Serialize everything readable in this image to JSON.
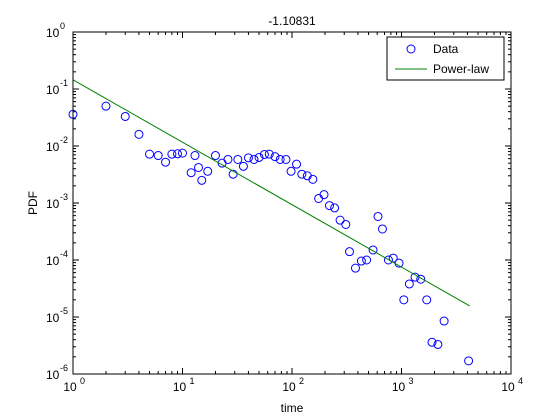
{
  "chart_data": {
    "type": "scatter",
    "title": "-1.10831",
    "xlabel": "time",
    "ylabel": "PDF",
    "xscale": "log",
    "yscale": "log",
    "xlim": [
      1,
      10000
    ],
    "ylim": [
      1e-06,
      1
    ],
    "grid": false,
    "legend_placement": "top-right",
    "x_ticks": [
      {
        "value": 1,
        "mantissa": "10",
        "exponent": "0"
      },
      {
        "value": 10,
        "mantissa": "10",
        "exponent": "1"
      },
      {
        "value": 100,
        "mantissa": "10",
        "exponent": "2"
      },
      {
        "value": 1000,
        "mantissa": "10",
        "exponent": "3"
      },
      {
        "value": 10000,
        "mantissa": "10",
        "exponent": "4"
      }
    ],
    "y_ticks": [
      {
        "value": 1,
        "mantissa": "10",
        "exponent": "0"
      },
      {
        "value": 0.1,
        "mantissa": "10",
        "exponent": "-1"
      },
      {
        "value": 0.01,
        "mantissa": "10",
        "exponent": "-2"
      },
      {
        "value": 0.001,
        "mantissa": "10",
        "exponent": "-3"
      },
      {
        "value": 0.0001,
        "mantissa": "10",
        "exponent": "-4"
      },
      {
        "value": 1e-05,
        "mantissa": "10",
        "exponent": "-5"
      },
      {
        "value": 1e-06,
        "mantissa": "10",
        "exponent": "-6"
      }
    ],
    "series": [
      {
        "name": "Data",
        "kind": "markers",
        "marker": "circle",
        "color": "#0000ff",
        "points": [
          [
            1,
            0.036
          ],
          [
            2,
            0.05
          ],
          [
            3,
            0.033
          ],
          [
            4,
            0.016
          ],
          [
            5,
            0.0072
          ],
          [
            6,
            0.0068
          ],
          [
            7,
            0.0052
          ],
          [
            8,
            0.0072
          ],
          [
            9,
            0.0073
          ],
          [
            10,
            0.0075
          ],
          [
            12,
            0.0034
          ],
          [
            13,
            0.0068
          ],
          [
            14,
            0.0042
          ],
          [
            15,
            0.0025
          ],
          [
            17,
            0.0036
          ],
          [
            20,
            0.0068
          ],
          [
            23,
            0.005
          ],
          [
            26,
            0.0058
          ],
          [
            29,
            0.0032
          ],
          [
            32,
            0.0058
          ],
          [
            36,
            0.0044
          ],
          [
            40,
            0.0062
          ],
          [
            45,
            0.0058
          ],
          [
            50,
            0.0063
          ],
          [
            56,
            0.0071
          ],
          [
            62,
            0.0072
          ],
          [
            70,
            0.0065
          ],
          [
            78,
            0.0058
          ],
          [
            88,
            0.0058
          ],
          [
            98,
            0.0036
          ],
          [
            110,
            0.0048
          ],
          [
            123,
            0.0032
          ],
          [
            138,
            0.003
          ],
          [
            155,
            0.0026
          ],
          [
            175,
            0.0012
          ],
          [
            196,
            0.0014
          ],
          [
            220,
            0.0009
          ],
          [
            245,
            0.00082
          ],
          [
            275,
            0.0005
          ],
          [
            310,
            0.00042
          ],
          [
            335,
            0.00014
          ],
          [
            380,
            7.2e-05
          ],
          [
            430,
            9.6e-05
          ],
          [
            480,
            0.0001
          ],
          [
            550,
            0.00015
          ],
          [
            610,
            0.00058
          ],
          [
            670,
            0.00035
          ],
          [
            760,
            0.0001
          ],
          [
            840,
            0.000108
          ],
          [
            950,
            8.8e-05
          ],
          [
            1050,
            2e-05
          ],
          [
            1180,
            3.8e-05
          ],
          [
            1330,
            5e-05
          ],
          [
            1500,
            4.6e-05
          ],
          [
            1700,
            2e-05
          ],
          [
            1900,
            3.6e-06
          ],
          [
            2150,
            3.3e-06
          ],
          [
            2450,
            8.5e-06
          ],
          [
            4100,
            1.7e-06
          ]
        ]
      },
      {
        "name": "Power-law",
        "kind": "line",
        "color": "#008000",
        "points": [
          [
            1,
            0.145
          ],
          [
            4200,
            1.56e-05
          ]
        ]
      }
    ]
  }
}
